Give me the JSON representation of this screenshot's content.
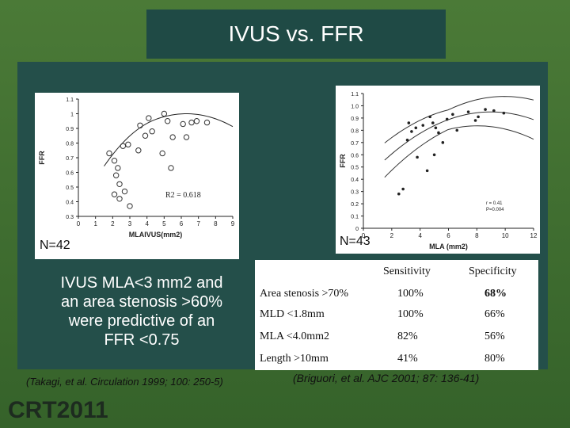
{
  "slide": {
    "title": "IVUS vs. FFR",
    "left_n": "N=42",
    "right_n": "N=43",
    "description_lines": [
      "IVUS MLA<3 mm2 and",
      "an area stenosis >60%",
      "were predictive of an",
      "FFR <0.75"
    ],
    "citation_left": "(Takagi, et al. Circulation 1999; 100: 250-5)",
    "citation_right": "(Briguori, et al. AJC 2001; 87: 136-41)",
    "logo": "CRT2011"
  },
  "table": {
    "headers": [
      "",
      "Sensitivity",
      "Specificity"
    ],
    "rows": [
      [
        "Area stenosis >70%",
        "100%",
        "68%"
      ],
      [
        "MLD <1.8mm",
        "100%",
        "66%"
      ],
      [
        "MLA <4.0mm2",
        "82%",
        "56%"
      ],
      [
        "Length >10mm",
        "41%",
        "80%"
      ]
    ]
  },
  "chart_data": [
    {
      "type": "scatter",
      "title": "",
      "xlabel": "MLAIVUS(mm2)",
      "ylabel": "FFR",
      "xlim": [
        0,
        9
      ],
      "ylim": [
        0.3,
        1.1
      ],
      "annotation": "R2 = 0.618",
      "tick_labels_y": [
        "0.3",
        "0.4",
        "0.5",
        "0.6",
        "0.7",
        "0.8",
        "0.9",
        "1",
        "1.1"
      ],
      "tick_labels_x": [
        "0",
        "1",
        "2",
        "3",
        "4",
        "5",
        "6",
        "7",
        "8",
        "9"
      ],
      "points": [
        [
          1.8,
          0.73
        ],
        [
          2.1,
          0.68
        ],
        [
          2.3,
          0.63
        ],
        [
          2.2,
          0.58
        ],
        [
          2.4,
          0.52
        ],
        [
          2.7,
          0.47
        ],
        [
          2.1,
          0.45
        ],
        [
          2.4,
          0.42
        ],
        [
          3.0,
          0.37
        ],
        [
          3.5,
          0.75
        ],
        [
          3.9,
          0.85
        ],
        [
          3.6,
          0.92
        ],
        [
          4.1,
          0.97
        ],
        [
          4.3,
          0.88
        ],
        [
          5.0,
          1.0
        ],
        [
          5.2,
          0.95
        ],
        [
          6.1,
          0.93
        ],
        [
          6.6,
          0.94
        ],
        [
          6.9,
          0.95
        ],
        [
          7.5,
          0.94
        ],
        [
          6.3,
          0.84
        ],
        [
          5.5,
          0.84
        ],
        [
          5.4,
          0.63
        ],
        [
          4.9,
          0.73
        ],
        [
          2.9,
          0.79
        ],
        [
          2.6,
          0.78
        ]
      ]
    },
    {
      "type": "scatter",
      "title": "",
      "xlabel": "MLA (mm2)",
      "ylabel": "FFR",
      "xlim": [
        0,
        12
      ],
      "ylim": [
        0,
        1.1
      ],
      "annotation": "r = 0.41\nP=0.004",
      "tick_labels_y": [
        "0",
        "0.1",
        "0.2",
        "0.3",
        "0.4",
        "0.5",
        "0.6",
        "0.7",
        "0.8",
        "0.9",
        "1.0",
        "1.1"
      ],
      "tick_labels_x": [
        "0",
        "2",
        "4",
        "6",
        "8",
        "10",
        "12"
      ],
      "points": [
        [
          3.2,
          0.86
        ],
        [
          3.4,
          0.79
        ],
        [
          3.7,
          0.82
        ],
        [
          4.2,
          0.84
        ],
        [
          4.7,
          0.91
        ],
        [
          4.9,
          0.86
        ],
        [
          5.1,
          0.82
        ],
        [
          5.3,
          0.78
        ],
        [
          3.1,
          0.72
        ],
        [
          3.8,
          0.58
        ],
        [
          4.5,
          0.47
        ],
        [
          2.8,
          0.32
        ],
        [
          2.5,
          0.28
        ],
        [
          5.9,
          0.89
        ],
        [
          6.3,
          0.93
        ],
        [
          7.4,
          0.95
        ],
        [
          8.6,
          0.97
        ],
        [
          9.2,
          0.96
        ],
        [
          9.9,
          0.94
        ],
        [
          6.6,
          0.8
        ],
        [
          7.9,
          0.88
        ],
        [
          8.1,
          0.91
        ],
        [
          5.6,
          0.7
        ],
        [
          5.0,
          0.6
        ]
      ]
    }
  ]
}
